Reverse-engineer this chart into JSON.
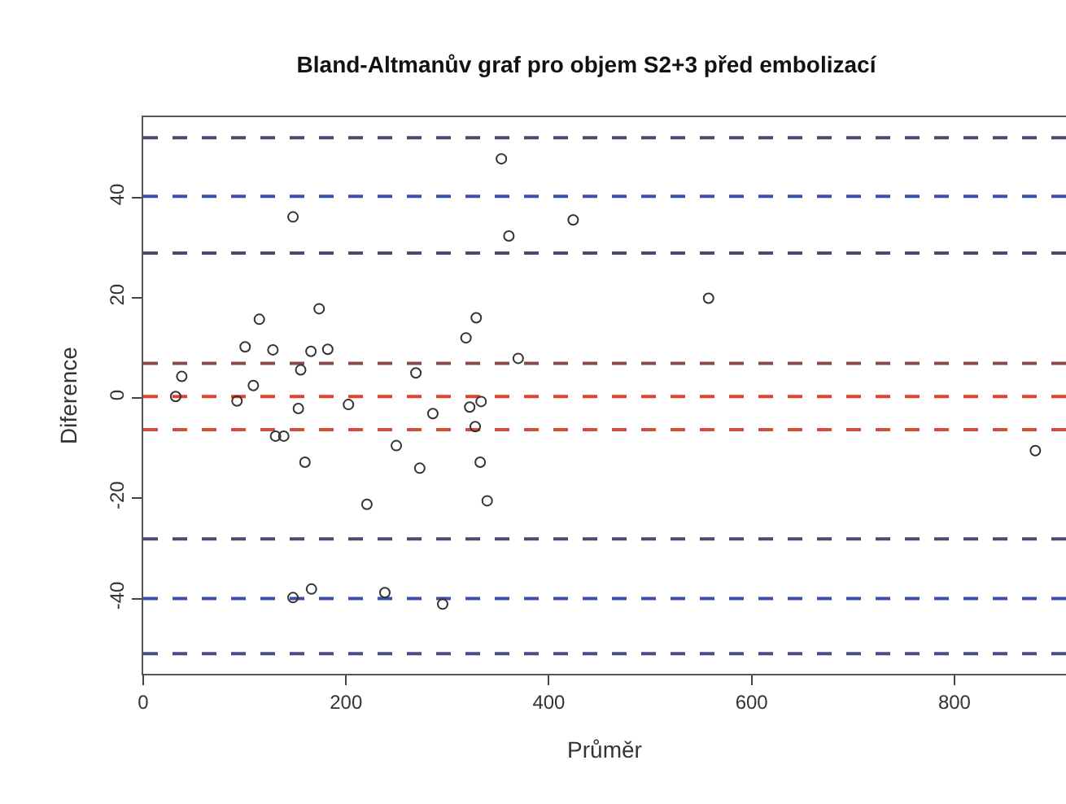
{
  "chart_data": {
    "type": "scatter",
    "title": "Bland-Altmanův graf pro objem S2+3 před embolizací",
    "xlabel": "Průměr",
    "ylabel": "Diference",
    "x": [
      32,
      38,
      92.5,
      100.5,
      108.6,
      114.5,
      127.9,
      130.5,
      138.6,
      147.7,
      147.7,
      155.3,
      153,
      159.5,
      165.4,
      165.9,
      173.5,
      182,
      202.4,
      220.6,
      238.3,
      249.6,
      268.9,
      272.7,
      285.6,
      295.3,
      318.3,
      322,
      328.4,
      327.4,
      333.2,
      332.3,
      339.2,
      353.2,
      360.6,
      369.8,
      424,
      557.5,
      879.8
    ],
    "series": [
      {
        "color": "#333333",
        "values": [
          0.3,
          4.3,
          -0.6,
          10.2,
          2.5,
          15.7,
          9.6,
          -7.6,
          -7.6,
          36.1,
          -39.8,
          5.6,
          -2.1,
          -12.8,
          9.3,
          -38.1,
          17.8,
          9.7,
          -1.3,
          -21.2,
          -38.8,
          -9.5,
          5.0,
          -14.0,
          -3.1,
          -41.1,
          12.0,
          -1.8,
          16.0,
          -5.7,
          -0.7,
          -12.8,
          -20.5,
          47.7,
          32.3,
          7.9,
          35.5,
          19.9,
          -10.5
        ]
      }
    ],
    "marker": "circle",
    "grid": false,
    "legend": false,
    "xlim": [
      0,
      910
    ],
    "xticks": [
      0,
      200,
      400,
      600,
      800
    ],
    "ylim": [
      -55,
      56
    ],
    "yticks": [
      -40,
      -20,
      0,
      20,
      40
    ],
    "ref_lines": [
      {
        "axis": "y",
        "value": 51.9,
        "color": "#4a4a6e",
        "line_style": "dashed"
      },
      {
        "axis": "y",
        "value": 40.2,
        "color": "#3c4fae",
        "line_style": "dashed"
      },
      {
        "axis": "y",
        "value": 28.9,
        "color": "#4a4a6e",
        "line_style": "dashed"
      },
      {
        "axis": "y",
        "value": 6.9,
        "color": "#8a4a4a",
        "line_style": "dashed"
      },
      {
        "axis": "y",
        "value": 0.3,
        "color": "#e4412b",
        "line_style": "dashed"
      },
      {
        "axis": "y",
        "value": -6.3,
        "color": "#d05040",
        "line_style": "dashed"
      },
      {
        "axis": "y",
        "value": -28.1,
        "color": "#4a4a6e",
        "line_style": "dashed"
      },
      {
        "axis": "y",
        "value": -40.0,
        "color": "#3c4fae",
        "line_style": "dashed"
      },
      {
        "axis": "y",
        "value": -51.0,
        "color": "#4a4a8e",
        "line_style": "dashed"
      }
    ]
  }
}
